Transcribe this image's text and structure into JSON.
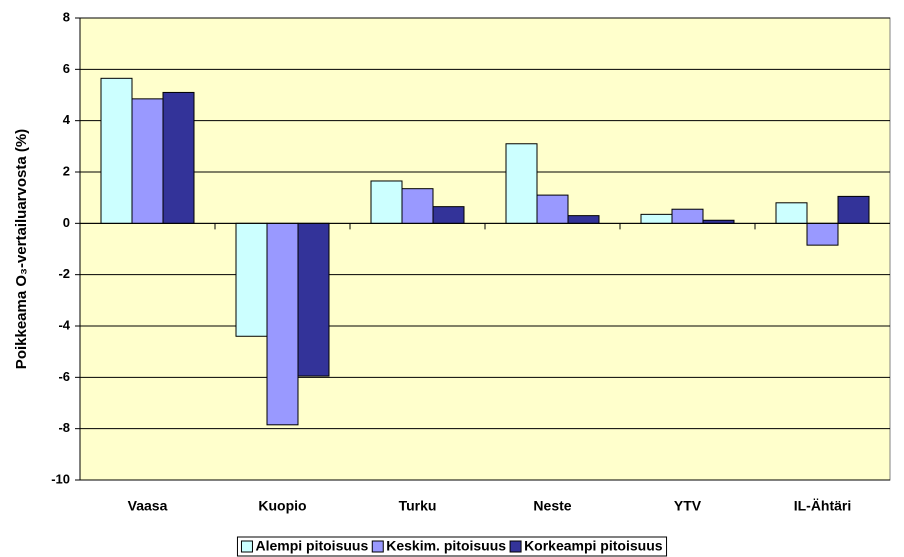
{
  "chart_data": {
    "type": "bar",
    "y_label": "Poikkeama O₃-vertailuarvosta (%)",
    "categories": [
      "Vaasa",
      "Kuopio",
      "Turku",
      "Neste",
      "YTV",
      "IL-Ähtäri"
    ],
    "series": [
      {
        "name": "Alempi pitoisuus",
        "color": "#ccffff",
        "values": [
          5.65,
          -4.4,
          1.65,
          3.1,
          0.35,
          0.8
        ]
      },
      {
        "name": "Keskim. pitoisuus",
        "color": "#9999ff",
        "values": [
          4.85,
          -7.85,
          1.35,
          1.1,
          0.55,
          -0.85
        ]
      },
      {
        "name": "Korkeampi pitoisuus",
        "color": "#333399",
        "values": [
          5.1,
          -5.95,
          0.65,
          0.3,
          0.12,
          1.05
        ]
      }
    ],
    "ylim": [
      -10,
      8
    ],
    "yticks": [
      -10,
      -8,
      -6,
      -4,
      -2,
      0,
      2,
      4,
      6,
      8
    ],
    "grid": true,
    "plot_background": "#ffffcc",
    "legend": "bottom"
  }
}
